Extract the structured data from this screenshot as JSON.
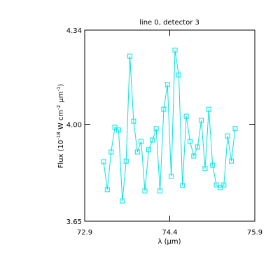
{
  "chart_data": {
    "type": "line",
    "title": "line 0, detector 3",
    "xlabel": "λ (μm)",
    "ylabel_parts": [
      "Flux (10",
      "-18",
      " W cm",
      "-2",
      " μm",
      "-1",
      ")"
    ],
    "xlim": [
      72.9,
      75.9
    ],
    "xticks": [
      72.9,
      74.4,
      75.9
    ],
    "ylim": [
      3.65,
      4.34
    ],
    "yticks": [
      3.65,
      {
        "value": 4,
        "label": "4.00"
      },
      4.34
    ],
    "series": [
      {
        "color": "#00e5e5",
        "marker": "square",
        "x": [
          73.233,
          73.299,
          73.366,
          73.432,
          73.498,
          73.565,
          73.631,
          73.697,
          73.763,
          73.83,
          73.896,
          73.962,
          74.029,
          74.095,
          74.161,
          74.228,
          74.294,
          74.36,
          74.426,
          74.493,
          74.559,
          74.625,
          74.692,
          74.758,
          74.824,
          74.891,
          74.957,
          75.023,
          75.089,
          75.156,
          75.222,
          75.288,
          75.355,
          75.421,
          75.487,
          75.554
        ],
        "values": [
          3.865,
          3.764,
          3.9,
          3.989,
          3.979,
          3.723,
          3.867,
          4.246,
          4.011,
          3.9,
          3.938,
          3.759,
          3.908,
          3.943,
          3.984,
          3.759,
          4.054,
          4.143,
          3.812,
          4.267,
          4.178,
          3.779,
          4.029,
          3.938,
          3.885,
          3.918,
          4.014,
          3.84,
          4.054,
          3.852,
          3.781,
          3.771,
          3.781,
          3.958,
          3.867,
          3.984
        ]
      }
    ]
  }
}
